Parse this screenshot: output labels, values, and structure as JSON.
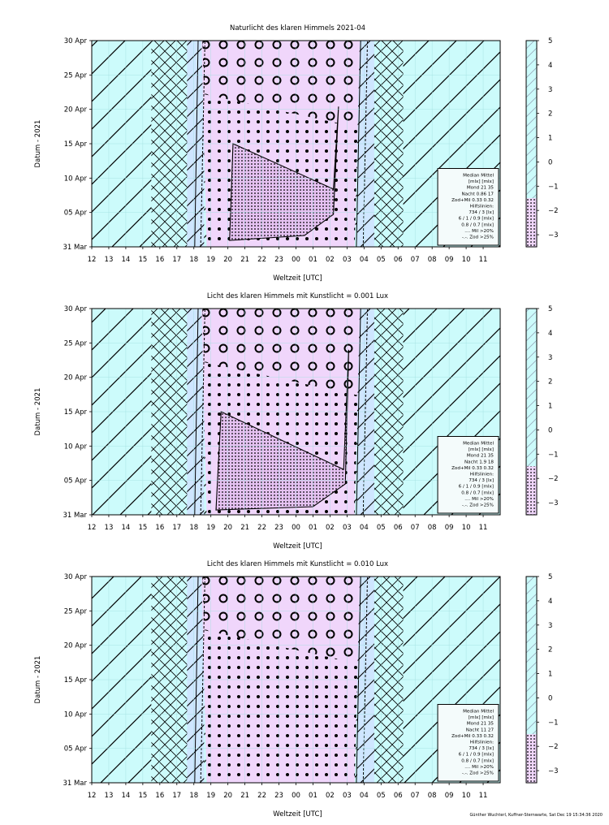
{
  "figure": {
    "credit": "Günther Wuchterl, Kuffner-Sternwarte, Sat Dec 19 15:34:36 2020"
  },
  "chart_data": [
    {
      "type": "heatmap",
      "title": "Naturlicht des klaren Himmels 2021-04",
      "xlabel": "Weltzeit [UTC]",
      "ylabel": "Datum - 2021",
      "x_ticks": [
        "12",
        "13",
        "14",
        "15",
        "16",
        "17",
        "18",
        "19",
        "20",
        "21",
        "22",
        "23",
        "00",
        "01",
        "02",
        "03",
        "04",
        "05",
        "06",
        "07",
        "08",
        "09",
        "10",
        "11"
      ],
      "y_ticks": [
        "31 Mar",
        "05 Apr",
        "10 Apr",
        "15 Apr",
        "20 Apr",
        "25 Apr",
        "30 Apr"
      ],
      "colorbar_ticks": [
        "5",
        "4",
        "3",
        "2",
        "1",
        "0",
        "−1",
        "−2",
        "−3"
      ],
      "colorbar_range": [
        -3.5,
        5
      ],
      "night_start_utc": 18.6,
      "night_end_utc": 27.6,
      "legend": [
        "Median Mittel",
        "[mlx]  [mlx]",
        "Mond   21  35",
        "Nacht 0.86  17",
        "Zod+Mil 0.33  0.32",
        "Hilfslinien:",
        "734 / 3  [lx]",
        "6 /  1 / 0.9 [mlx]",
        "0.8 / 0.7 [mlx]",
        ".... Mil >20%",
        "-.-. Zod >25%"
      ]
    },
    {
      "type": "heatmap",
      "title": "Licht des klaren Himmels mit Kunstlicht = 0.001 Lux",
      "xlabel": "Weltzeit [UTC]",
      "ylabel": "Datum - 2021",
      "x_ticks": [
        "12",
        "13",
        "14",
        "15",
        "16",
        "17",
        "18",
        "19",
        "20",
        "21",
        "22",
        "23",
        "00",
        "01",
        "02",
        "03",
        "04",
        "05",
        "06",
        "07",
        "08",
        "09",
        "10",
        "11"
      ],
      "y_ticks": [
        "31 Mar",
        "05 Apr",
        "10 Apr",
        "15 Apr",
        "20 Apr",
        "25 Apr",
        "30 Apr"
      ],
      "colorbar_ticks": [
        "5",
        "4",
        "3",
        "2",
        "1",
        "0",
        "−1",
        "−2",
        "−3"
      ],
      "colorbar_range": [
        -3.5,
        5
      ],
      "night_start_utc": 18.6,
      "night_end_utc": 27.6,
      "legend": [
        "Median Mittel",
        "[mlx]  [mlx]",
        "Mond   21  35",
        "Nacht 1.9  18",
        "Zod+Mil 0.33  0.32",
        "Hilfslinien:",
        "734 / 3  [lx]",
        "6 /  1 / 0.9 [mlx]",
        "0.8 / 0.7 [mlx]",
        ".... Mil >20%",
        "-.-. Zod >25%"
      ]
    },
    {
      "type": "heatmap",
      "title": "Licht des klaren Himmels mit Kunstlicht = 0.010 Lux",
      "xlabel": "Weltzeit [UTC]",
      "ylabel": "Datum - 2021",
      "x_ticks": [
        "12",
        "13",
        "14",
        "15",
        "16",
        "17",
        "18",
        "19",
        "20",
        "21",
        "22",
        "23",
        "00",
        "01",
        "02",
        "03",
        "04",
        "05",
        "06",
        "07",
        "08",
        "09",
        "10",
        "11"
      ],
      "y_ticks": [
        "31 Mar",
        "05 Apr",
        "10 Apr",
        "15 Apr",
        "20 Apr",
        "25 Apr",
        "30 Apr"
      ],
      "colorbar_ticks": [
        "5",
        "4",
        "3",
        "2",
        "1",
        "0",
        "−1",
        "−2",
        "−3"
      ],
      "colorbar_range": [
        -3.5,
        5
      ],
      "night_start_utc": 18.6,
      "night_end_utc": 27.6,
      "legend": [
        "Median Mittel",
        "[mlx]  [mlx]",
        "Mond   21  35",
        "Nacht  11  27",
        "Zod+Mil 0.33  0.32",
        "Hilfslinien:",
        "734 / 3  [lx]",
        "6 /  1 / 0.9 [mlx]",
        "0.8 / 0.7 [mlx]",
        ".... Mil >20%",
        "-.-. Zod >25%"
      ]
    }
  ]
}
